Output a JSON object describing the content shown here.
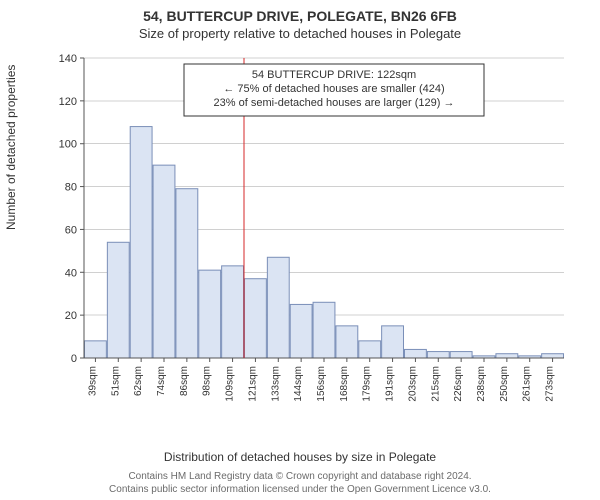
{
  "header": {
    "title": "54, BUTTERCUP DRIVE, POLEGATE, BN26 6FB",
    "subtitle": "Size of property relative to detached houses in Polegate"
  },
  "chart": {
    "type": "histogram",
    "ylabel": "Number of detached properties",
    "xlabel": "Distribution of detached houses by size in Polegate",
    "ylim": [
      0,
      140
    ],
    "ytick_step": 20,
    "background_color": "#ffffff",
    "grid_color": "#d0d0d0",
    "bar_fill": "#dbe4f3",
    "bar_stroke": "#7a8fb8",
    "ref_line_color": "#d62728",
    "ref_line_x_category_index": 7,
    "categories": [
      "39sqm",
      "51sqm",
      "62sqm",
      "74sqm",
      "86sqm",
      "98sqm",
      "109sqm",
      "121sqm",
      "133sqm",
      "144sqm",
      "156sqm",
      "168sqm",
      "179sqm",
      "191sqm",
      "203sqm",
      "215sqm",
      "226sqm",
      "238sqm",
      "250sqm",
      "261sqm",
      "273sqm"
    ],
    "values": [
      8,
      54,
      108,
      90,
      79,
      41,
      43,
      37,
      47,
      25,
      26,
      15,
      8,
      15,
      4,
      3,
      3,
      1,
      2,
      1,
      2
    ],
    "annotation": {
      "lines": [
        "54 BUTTERCUP DRIVE: 122sqm",
        "← 75% of detached houses are smaller (424)",
        "23% of semi-detached houses are larger (129) →"
      ],
      "border_color": "#333333",
      "text_color": "#333333"
    }
  },
  "footnote": {
    "line1": "Contains HM Land Registry data © Crown copyright and database right 2024.",
    "line2": "Contains public sector information licensed under the Open Government Licence v3.0."
  }
}
